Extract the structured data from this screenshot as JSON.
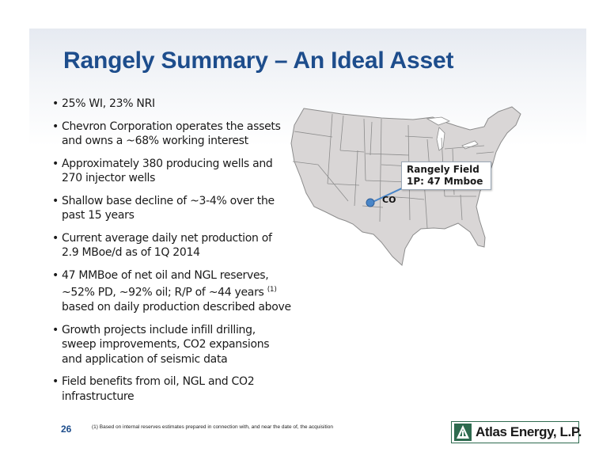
{
  "slide": {
    "title": "Rangely Summary – An Ideal Asset",
    "bullet_marker": "•",
    "bullets": [
      "25% WI, 23% NRI",
      "Chevron Corporation operates the assets and owns a ~68% working interest",
      "Approximately 380 producing wells and 270 injector wells",
      "Shallow base decline of ~3-4% over the past 15 years",
      "Current average daily net production of 2.9 MBoe/d as of 1Q 2014",
      {
        "before": "47 MMBoe of net oil and NGL reserves, ~52% PD, ~92% oil; R/P of ~44 years ",
        "sup": "(1)",
        "after": " based on daily production described above"
      },
      "Growth projects include infill drilling, sweep improvements, CO2 expansions and application of seismic data",
      "Field benefits from oil, NGL and CO2 infrastructure"
    ],
    "map": {
      "callout_line1": "Rangely Field",
      "callout_line2": "1P: 47 Mmboe",
      "state_label": "CO",
      "marker_color": "#4a86c8",
      "map_fill": "#d9d6d6",
      "border_color": "#8c8c8c"
    },
    "footer": {
      "page_number": "26",
      "footnote": "(1) Based on internal reserves estimates prepared in connection with, and near the date of, the acquisition",
      "logo_text": "Atlas Energy, L.P.",
      "logo_icon": "atlas-logo-icon",
      "brand_color": "#1d4d8c",
      "logo_color": "#2e6b4f"
    }
  }
}
